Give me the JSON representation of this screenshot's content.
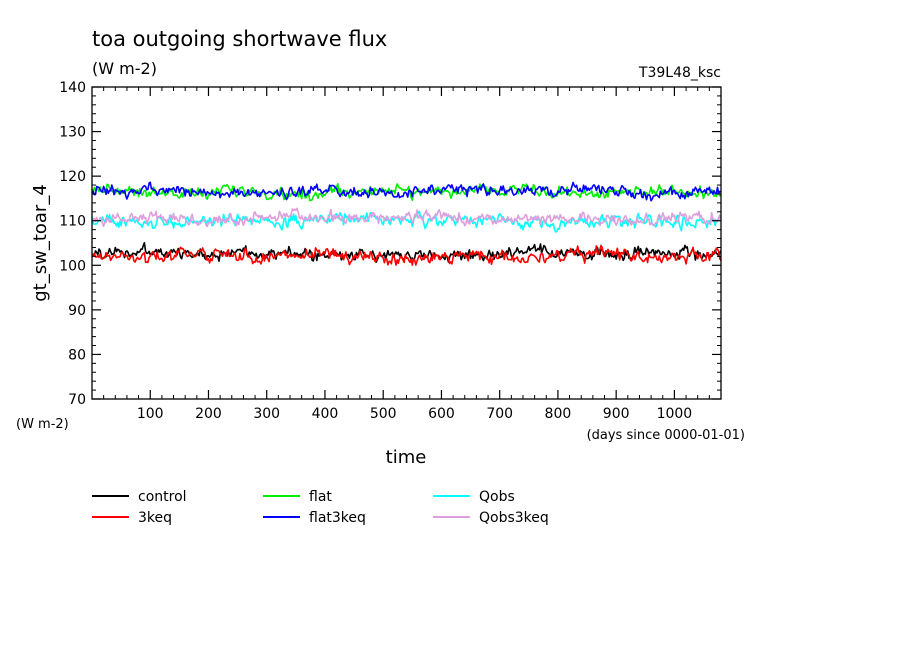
{
  "chart_data": {
    "type": "line",
    "title": "toa outgoing shortwave flux",
    "units": "(W m-2)",
    "run_label": "T39L48_ksc",
    "ylabel": "gt_sw_toar_4",
    "y_units_label": "(W m-2)",
    "xlabel": "time",
    "x_units_label": "(days since 0000-01-01)",
    "xlim": [
      0,
      1080
    ],
    "ylim": [
      70,
      140
    ],
    "x_ticks": [
      100,
      200,
      300,
      400,
      500,
      600,
      700,
      800,
      900,
      1000
    ],
    "y_ticks": [
      70,
      80,
      90,
      100,
      110,
      120,
      130,
      140
    ],
    "grid": false,
    "legend_position": "bottom",
    "series": [
      {
        "name": "control",
        "color": "#000000",
        "mean": 102.5,
        "amplitude": 1.4,
        "range": [
          100,
          105.5
        ]
      },
      {
        "name": "flat",
        "color": "#00ee00",
        "mean": 116.5,
        "amplitude": 1.3,
        "range": [
          114,
          119.5
        ]
      },
      {
        "name": "Qobs",
        "color": "#00ffff",
        "mean": 110.0,
        "amplitude": 1.4,
        "range": [
          107,
          113.5
        ]
      },
      {
        "name": "3keq",
        "color": "#ff0000",
        "mean": 102.0,
        "amplitude": 1.4,
        "range": [
          98.5,
          105.5
        ]
      },
      {
        "name": "flat3keq",
        "color": "#0000ff",
        "mean": 116.5,
        "amplitude": 1.3,
        "range": [
          114,
          119
        ]
      },
      {
        "name": "Qobs3keq",
        "color": "#dda0dd",
        "mean": 110.5,
        "amplitude": 1.4,
        "range": [
          107.5,
          113.5
        ]
      }
    ]
  }
}
